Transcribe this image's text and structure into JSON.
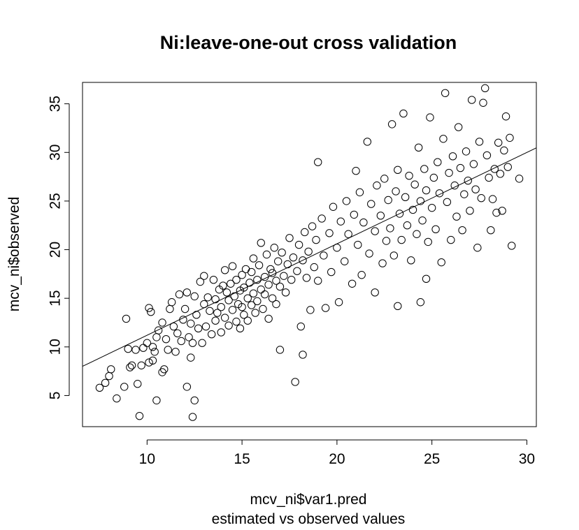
{
  "chart_data": {
    "type": "scatter",
    "title": "Ni:leave-one-out cross validation",
    "xlabel": "mcv_ni$var1.pred",
    "subtitle": "estimated vs observed values",
    "ylabel": "mcv_ni$observed",
    "xlim": [
      6.6,
      30.5
    ],
    "ylim": [
      1.8,
      37.2
    ],
    "x_ticks": [
      10,
      15,
      20,
      25,
      30
    ],
    "y_ticks": [
      5,
      10,
      15,
      20,
      25,
      30,
      35
    ],
    "x_tick_labels": [
      "10",
      "15",
      "20",
      "25",
      "30"
    ],
    "y_tick_labels": [
      "5",
      "10",
      "15",
      "20",
      "25",
      "30",
      "35"
    ],
    "grid": false,
    "legend": "none",
    "fit_line": {
      "intercept": 1.8,
      "slope": 0.94
    },
    "colors": {
      "points": "#000000",
      "line": "#000000",
      "background": "#ffffff"
    },
    "series": [
      {
        "points": [
          [
            7.5,
            5.8
          ],
          [
            7.8,
            6.3
          ],
          [
            8.0,
            7.0
          ],
          [
            8.1,
            7.7
          ],
          [
            8.4,
            4.7
          ],
          [
            8.8,
            5.9
          ],
          [
            8.9,
            12.9
          ],
          [
            9.0,
            9.8
          ],
          [
            9.1,
            7.9
          ],
          [
            9.2,
            8.1
          ],
          [
            9.4,
            9.7
          ],
          [
            9.5,
            6.2
          ],
          [
            9.6,
            2.9
          ],
          [
            9.7,
            8.1
          ],
          [
            9.8,
            9.9
          ],
          [
            10.0,
            10.4
          ],
          [
            10.1,
            14.0
          ],
          [
            10.1,
            8.4
          ],
          [
            10.2,
            13.6
          ],
          [
            10.3,
            8.6
          ],
          [
            10.3,
            10.0
          ],
          [
            10.4,
            9.5
          ],
          [
            10.5,
            11.0
          ],
          [
            10.5,
            4.5
          ],
          [
            10.6,
            11.7
          ],
          [
            10.8,
            12.5
          ],
          [
            10.8,
            7.4
          ],
          [
            10.9,
            7.7
          ],
          [
            11.0,
            10.8
          ],
          [
            11.1,
            9.7
          ],
          [
            11.2,
            13.9
          ],
          [
            11.3,
            14.6
          ],
          [
            11.4,
            12.1
          ],
          [
            11.5,
            9.5
          ],
          [
            11.6,
            11.4
          ],
          [
            11.7,
            15.4
          ],
          [
            11.8,
            10.6
          ],
          [
            11.9,
            12.8
          ],
          [
            12.0,
            13.9
          ],
          [
            12.1,
            15.6
          ],
          [
            12.1,
            5.9
          ],
          [
            12.2,
            11.0
          ],
          [
            12.3,
            12.4
          ],
          [
            12.3,
            8.9
          ],
          [
            12.4,
            10.4
          ],
          [
            12.4,
            2.8
          ],
          [
            12.5,
            15.2
          ],
          [
            12.5,
            4.5
          ],
          [
            12.6,
            13.3
          ],
          [
            12.7,
            11.9
          ],
          [
            12.8,
            16.7
          ],
          [
            12.9,
            10.4
          ],
          [
            13.0,
            14.4
          ],
          [
            13.0,
            17.3
          ],
          [
            13.1,
            12.1
          ],
          [
            13.2,
            15.1
          ],
          [
            13.3,
            13.7
          ],
          [
            13.4,
            11.3
          ],
          [
            13.5,
            16.9
          ],
          [
            13.6,
            12.7
          ],
          [
            13.6,
            14.9
          ],
          [
            13.7,
            13.5
          ],
          [
            13.8,
            15.9
          ],
          [
            13.9,
            11.5
          ],
          [
            13.9,
            14.1
          ],
          [
            14.0,
            16.3
          ],
          [
            14.1,
            13.0
          ],
          [
            14.1,
            17.9
          ],
          [
            14.2,
            15.6
          ],
          [
            14.3,
            12.2
          ],
          [
            14.3,
            14.8
          ],
          [
            14.4,
            16.5
          ],
          [
            14.5,
            13.8
          ],
          [
            14.5,
            18.3
          ],
          [
            14.6,
            15.2
          ],
          [
            14.7,
            12.6
          ],
          [
            14.7,
            16.9
          ],
          [
            14.8,
            14.4
          ],
          [
            14.9,
            15.8
          ],
          [
            14.9,
            11.9
          ],
          [
            15.0,
            17.4
          ],
          [
            15.0,
            14.1
          ],
          [
            15.1,
            16.1
          ],
          [
            15.1,
            13.3
          ],
          [
            15.2,
            18.0
          ],
          [
            15.3,
            15.0
          ],
          [
            15.3,
            12.7
          ],
          [
            15.4,
            16.6
          ],
          [
            15.5,
            14.3
          ],
          [
            15.5,
            17.7
          ],
          [
            15.6,
            15.5
          ],
          [
            15.6,
            19.1
          ],
          [
            15.7,
            13.5
          ],
          [
            15.8,
            16.9
          ],
          [
            15.8,
            14.7
          ],
          [
            15.9,
            18.4
          ],
          [
            16.0,
            15.9
          ],
          [
            16.0,
            20.7
          ],
          [
            16.1,
            13.9
          ],
          [
            16.2,
            17.2
          ],
          [
            16.2,
            15.4
          ],
          [
            16.3,
            19.5
          ],
          [
            16.4,
            16.4
          ],
          [
            16.4,
            12.9
          ],
          [
            16.5,
            18.0
          ],
          [
            16.6,
            15.0
          ],
          [
            16.6,
            17.6
          ],
          [
            16.7,
            20.2
          ],
          [
            16.8,
            16.8
          ],
          [
            16.8,
            14.4
          ],
          [
            16.9,
            18.8
          ],
          [
            17.0,
            16.2
          ],
          [
            17.0,
            9.7
          ],
          [
            17.1,
            19.7
          ],
          [
            17.2,
            17.3
          ],
          [
            17.3,
            15.6
          ],
          [
            17.4,
            18.5
          ],
          [
            17.5,
            21.2
          ],
          [
            17.6,
            16.9
          ],
          [
            17.7,
            19.2
          ],
          [
            17.8,
            6.4
          ],
          [
            17.9,
            17.8
          ],
          [
            18.0,
            20.5
          ],
          [
            18.1,
            12.1
          ],
          [
            18.2,
            18.9
          ],
          [
            18.2,
            9.2
          ],
          [
            18.3,
            21.8
          ],
          [
            18.4,
            17.1
          ],
          [
            18.5,
            19.8
          ],
          [
            18.6,
            13.8
          ],
          [
            18.7,
            22.4
          ],
          [
            18.8,
            18.2
          ],
          [
            18.9,
            21.0
          ],
          [
            19.0,
            29.0
          ],
          [
            19.0,
            16.8
          ],
          [
            19.2,
            23.2
          ],
          [
            19.3,
            19.4
          ],
          [
            19.4,
            14.0
          ],
          [
            19.6,
            21.7
          ],
          [
            19.7,
            17.7
          ],
          [
            19.8,
            24.4
          ],
          [
            20.0,
            20.2
          ],
          [
            20.1,
            14.6
          ],
          [
            20.2,
            22.9
          ],
          [
            20.4,
            18.8
          ],
          [
            20.5,
            25.0
          ],
          [
            20.6,
            21.6
          ],
          [
            20.8,
            16.5
          ],
          [
            20.9,
            23.6
          ],
          [
            21.0,
            28.1
          ],
          [
            21.1,
            20.5
          ],
          [
            21.2,
            25.9
          ],
          [
            21.3,
            17.4
          ],
          [
            21.4,
            22.8
          ],
          [
            21.6,
            31.1
          ],
          [
            21.7,
            19.6
          ],
          [
            21.8,
            24.7
          ],
          [
            22.0,
            21.9
          ],
          [
            22.0,
            15.6
          ],
          [
            22.1,
            26.6
          ],
          [
            22.3,
            23.5
          ],
          [
            22.4,
            18.6
          ],
          [
            22.5,
            27.3
          ],
          [
            22.6,
            20.9
          ],
          [
            22.7,
            25.1
          ],
          [
            22.8,
            22.2
          ],
          [
            22.9,
            32.9
          ],
          [
            23.0,
            19.4
          ],
          [
            23.1,
            26.0
          ],
          [
            23.2,
            28.2
          ],
          [
            23.2,
            14.2
          ],
          [
            23.3,
            23.7
          ],
          [
            23.4,
            21.0
          ],
          [
            23.5,
            34.0
          ],
          [
            23.6,
            25.4
          ],
          [
            23.7,
            22.5
          ],
          [
            23.8,
            27.6
          ],
          [
            23.9,
            18.9
          ],
          [
            24.0,
            24.1
          ],
          [
            24.1,
            26.7
          ],
          [
            24.2,
            21.6
          ],
          [
            24.3,
            30.5
          ],
          [
            24.4,
            25.0
          ],
          [
            24.4,
            14.6
          ],
          [
            24.5,
            23.0
          ],
          [
            24.6,
            28.3
          ],
          [
            24.7,
            26.1
          ],
          [
            24.7,
            17.0
          ],
          [
            24.8,
            20.8
          ],
          [
            24.9,
            33.6
          ],
          [
            25.0,
            24.3
          ],
          [
            25.1,
            27.4
          ],
          [
            25.2,
            22.1
          ],
          [
            25.3,
            29.0
          ],
          [
            25.4,
            25.8
          ],
          [
            25.5,
            18.7
          ],
          [
            25.6,
            31.4
          ],
          [
            25.7,
            36.1
          ],
          [
            25.8,
            24.9
          ],
          [
            25.9,
            27.9
          ],
          [
            26.0,
            21.0
          ],
          [
            26.1,
            29.6
          ],
          [
            26.2,
            26.6
          ],
          [
            26.3,
            23.4
          ],
          [
            26.4,
            32.6
          ],
          [
            26.5,
            28.4
          ],
          [
            26.6,
            22.0
          ],
          [
            26.7,
            25.7
          ],
          [
            26.8,
            30.1
          ],
          [
            26.9,
            27.1
          ],
          [
            27.0,
            24.0
          ],
          [
            27.1,
            35.4
          ],
          [
            27.2,
            28.8
          ],
          [
            27.3,
            26.2
          ],
          [
            27.4,
            20.2
          ],
          [
            27.5,
            31.1
          ],
          [
            27.6,
            25.3
          ],
          [
            27.7,
            35.1
          ],
          [
            27.8,
            36.6
          ],
          [
            27.9,
            29.7
          ],
          [
            28.0,
            27.4
          ],
          [
            28.1,
            22.0
          ],
          [
            28.2,
            25.2
          ],
          [
            28.3,
            28.3
          ],
          [
            28.4,
            23.8
          ],
          [
            28.5,
            31.0
          ],
          [
            28.6,
            27.8
          ],
          [
            28.7,
            24.0
          ],
          [
            28.8,
            30.2
          ],
          [
            28.9,
            33.7
          ],
          [
            29.0,
            28.5
          ],
          [
            29.1,
            31.5
          ],
          [
            29.2,
            20.4
          ],
          [
            29.6,
            27.3
          ]
        ]
      }
    ]
  }
}
